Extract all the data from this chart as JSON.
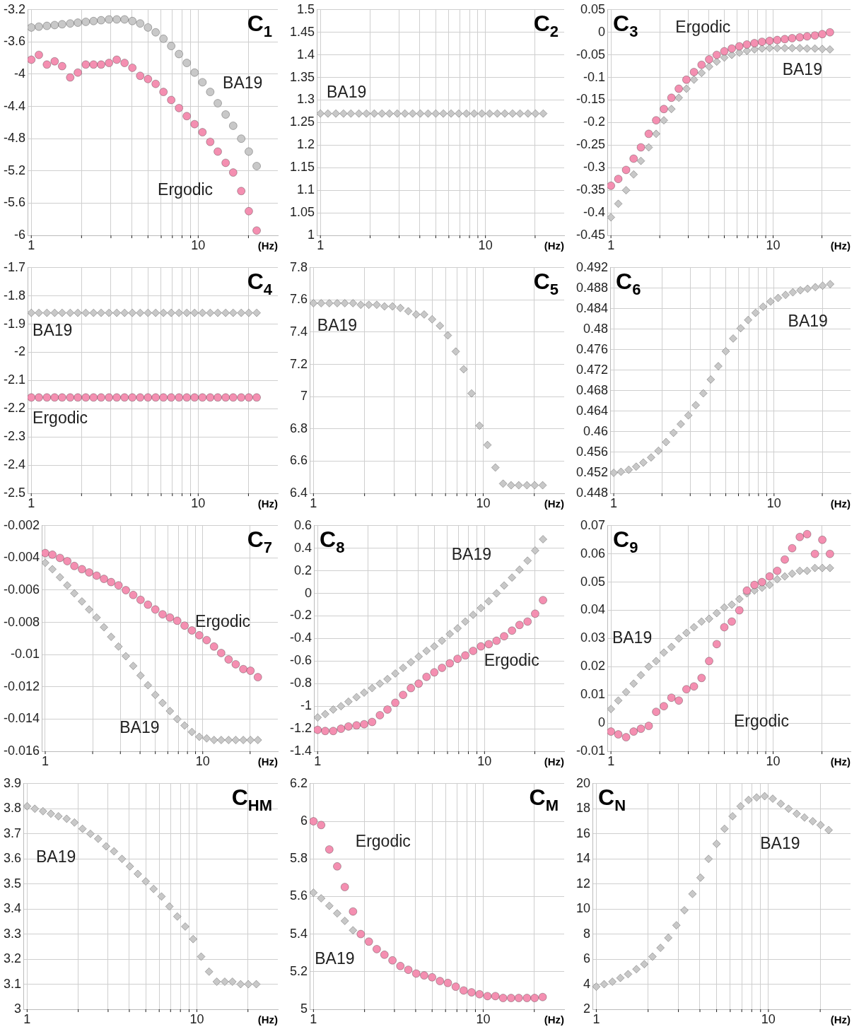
{
  "chart_data": [
    {
      "type": "scatter",
      "title": "C$_{1}$",
      "xlabel": "(Hz)",
      "log": "x",
      "grid": true,
      "xlim": [
        0.95,
        30
      ],
      "xticks": [
        {
          "value": 1,
          "label": "1"
        },
        {
          "value": 2,
          "label": null
        },
        {
          "value": 3,
          "label": null
        },
        {
          "value": 4,
          "label": null
        },
        {
          "value": 5,
          "label": null
        },
        {
          "value": 6,
          "label": null
        },
        {
          "value": 7,
          "label": null
        },
        {
          "value": 8,
          "label": null
        },
        {
          "value": 9,
          "label": null
        },
        {
          "value": 10,
          "label": "10"
        },
        {
          "value": 20,
          "label": null
        }
      ],
      "ylim": [
        -6,
        -3.2
      ],
      "yticks": [
        -6,
        -5.6,
        -5.2,
        -4.8,
        -4.4,
        -4,
        -3.6,
        -3.2
      ],
      "x": [
        1,
        1.11,
        1.24,
        1.38,
        1.53,
        1.71,
        1.9,
        2.12,
        2.36,
        2.62,
        2.92,
        3.25,
        3.62,
        4.03,
        4.49,
        5,
        5.56,
        6.19,
        6.89,
        7.67,
        8.54,
        9.51,
        10.6,
        11.8,
        13.1,
        14.6,
        16.2,
        18.1,
        20.1,
        22.4
      ],
      "series": [
        {
          "name": "BA19",
          "color": "#c8c8c8",
          "marker": "circle",
          "values": [
            -3.42,
            -3.41,
            -3.4,
            -3.39,
            -3.38,
            -3.37,
            -3.36,
            -3.35,
            -3.34,
            -3.33,
            -3.32,
            -3.32,
            -3.32,
            -3.34,
            -3.37,
            -3.42,
            -3.48,
            -3.56,
            -3.65,
            -3.75,
            -3.86,
            -3.98,
            -4.1,
            -4.22,
            -4.36,
            -4.5,
            -4.64,
            -4.8,
            -4.96,
            -5.14
          ]
        },
        {
          "name": "Ergodic",
          "color": "#f48fb1",
          "marker": "circle",
          "values": [
            -3.82,
            -3.76,
            -3.88,
            -3.84,
            -3.9,
            -4.04,
            -3.98,
            -3.88,
            -3.88,
            -3.88,
            -3.86,
            -3.82,
            -3.86,
            -3.92,
            -4.02,
            -4.06,
            -4.12,
            -4.22,
            -4.32,
            -4.42,
            -4.52,
            -4.62,
            -4.72,
            -4.84,
            -4.96,
            -5.1,
            -5.22,
            -5.45,
            -5.7,
            -5.94
          ]
        }
      ]
    },
    {
      "type": "scatter",
      "title": "C$_{2}$",
      "xlabel": "(Hz)",
      "log": "x",
      "grid": true,
      "xlim": [
        0.95,
        30
      ],
      "xticks": [
        {
          "value": 1,
          "label": "1"
        },
        {
          "value": 2,
          "label": null
        },
        {
          "value": 3,
          "label": null
        },
        {
          "value": 4,
          "label": null
        },
        {
          "value": 5,
          "label": null
        },
        {
          "value": 6,
          "label": null
        },
        {
          "value": 7,
          "label": null
        },
        {
          "value": 8,
          "label": null
        },
        {
          "value": 9,
          "label": null
        },
        {
          "value": 10,
          "label": "10"
        },
        {
          "value": 20,
          "label": null
        }
      ],
      "ylim": [
        1,
        1.5
      ],
      "yticks": [
        1,
        1.05,
        1.1,
        1.15,
        1.2,
        1.25,
        1.3,
        1.35,
        1.4,
        1.45,
        1.5
      ],
      "x": [
        1,
        1.11,
        1.24,
        1.38,
        1.53,
        1.71,
        1.9,
        2.12,
        2.36,
        2.62,
        2.92,
        3.25,
        3.62,
        4.03,
        4.49,
        5,
        5.56,
        6.19,
        6.89,
        7.67,
        8.54,
        9.51,
        10.6,
        11.8,
        13.1,
        14.6,
        16.2,
        18.1,
        20.1,
        22.4
      ],
      "series": [
        {
          "name": "BA19",
          "color": "#c8c8c8",
          "marker": "diamond",
          "values": [
            1.27,
            1.27,
            1.27,
            1.27,
            1.27,
            1.27,
            1.27,
            1.27,
            1.27,
            1.27,
            1.27,
            1.27,
            1.27,
            1.27,
            1.27,
            1.27,
            1.27,
            1.27,
            1.27,
            1.27,
            1.27,
            1.27,
            1.27,
            1.27,
            1.27,
            1.27,
            1.27,
            1.27,
            1.27,
            1.27
          ]
        }
      ]
    },
    {
      "type": "scatter",
      "title": "C$_{3}$",
      "xlabel": "(Hz)",
      "log": "x",
      "grid": true,
      "xlim": [
        0.95,
        30
      ],
      "xticks": [
        {
          "value": 1,
          "label": "1"
        },
        {
          "value": 2,
          "label": null
        },
        {
          "value": 3,
          "label": null
        },
        {
          "value": 4,
          "label": null
        },
        {
          "value": 5,
          "label": null
        },
        {
          "value": 6,
          "label": null
        },
        {
          "value": 7,
          "label": null
        },
        {
          "value": 8,
          "label": null
        },
        {
          "value": 9,
          "label": null
        },
        {
          "value": 10,
          "label": "10"
        },
        {
          "value": 20,
          "label": null
        }
      ],
      "ylim": [
        -0.45,
        0.05
      ],
      "yticks": [
        -0.45,
        -0.4,
        -0.35,
        -0.3,
        -0.25,
        -0.2,
        -0.15,
        -0.1,
        -0.05,
        0,
        0.05
      ],
      "x": [
        1,
        1.11,
        1.24,
        1.38,
        1.53,
        1.71,
        1.9,
        2.12,
        2.36,
        2.62,
        2.92,
        3.25,
        3.62,
        4.03,
        4.49,
        5,
        5.56,
        6.19,
        6.89,
        7.67,
        8.54,
        9.51,
        10.6,
        11.8,
        13.1,
        14.6,
        16.2,
        18.1,
        20.1,
        22.4
      ],
      "series": [
        {
          "name": "BA19",
          "color": "#c8c8c8",
          "marker": "diamond",
          "values": [
            -0.41,
            -0.38,
            -0.35,
            -0.315,
            -0.285,
            -0.255,
            -0.225,
            -0.195,
            -0.17,
            -0.145,
            -0.125,
            -0.105,
            -0.09,
            -0.076,
            -0.065,
            -0.056,
            -0.05,
            -0.045,
            -0.041,
            -0.038,
            -0.036,
            -0.035,
            -0.035,
            -0.035,
            -0.035,
            -0.035,
            -0.036,
            -0.036,
            -0.037,
            -0.038
          ]
        },
        {
          "name": "Ergodic",
          "color": "#f48fb1",
          "marker": "circle",
          "values": [
            -0.34,
            -0.325,
            -0.305,
            -0.28,
            -0.255,
            -0.225,
            -0.195,
            -0.17,
            -0.145,
            -0.125,
            -0.105,
            -0.088,
            -0.072,
            -0.06,
            -0.05,
            -0.042,
            -0.036,
            -0.031,
            -0.027,
            -0.024,
            -0.021,
            -0.019,
            -0.017,
            -0.015,
            -0.013,
            -0.011,
            -0.009,
            -0.007,
            -0.004,
            0
          ]
        }
      ]
    },
    {
      "type": "scatter",
      "title": "C$_{4}$",
      "xlabel": "(Hz)",
      "log": "x",
      "grid": true,
      "xlim": [
        0.95,
        30
      ],
      "xticks": [
        {
          "value": 1,
          "label": "1"
        },
        {
          "value": 2,
          "label": null
        },
        {
          "value": 3,
          "label": null
        },
        {
          "value": 4,
          "label": null
        },
        {
          "value": 5,
          "label": null
        },
        {
          "value": 6,
          "label": null
        },
        {
          "value": 7,
          "label": null
        },
        {
          "value": 8,
          "label": null
        },
        {
          "value": 9,
          "label": null
        },
        {
          "value": 10,
          "label": "10"
        },
        {
          "value": 20,
          "label": null
        }
      ],
      "ylim": [
        -2.5,
        -1.7
      ],
      "yticks": [
        -2.5,
        -2.4,
        -2.3,
        -2.2,
        -2.1,
        -2,
        -1.9,
        -1.8,
        -1.7
      ],
      "x": [
        1,
        1.11,
        1.24,
        1.38,
        1.53,
        1.71,
        1.9,
        2.12,
        2.36,
        2.62,
        2.92,
        3.25,
        3.62,
        4.03,
        4.49,
        5,
        5.56,
        6.19,
        6.89,
        7.67,
        8.54,
        9.51,
        10.6,
        11.8,
        13.1,
        14.6,
        16.2,
        18.1,
        20.1,
        22.4
      ],
      "series": [
        {
          "name": "BA19",
          "color": "#c8c8c8",
          "marker": "diamond",
          "values": [
            -1.86,
            -1.86,
            -1.86,
            -1.86,
            -1.86,
            -1.86,
            -1.86,
            -1.86,
            -1.86,
            -1.86,
            -1.86,
            -1.86,
            -1.86,
            -1.86,
            -1.86,
            -1.86,
            -1.86,
            -1.86,
            -1.86,
            -1.86,
            -1.86,
            -1.86,
            -1.86,
            -1.86,
            -1.86,
            -1.86,
            -1.86,
            -1.86,
            -1.86,
            -1.86
          ]
        },
        {
          "name": "Ergodic",
          "color": "#f48fb1",
          "marker": "circle",
          "values": [
            -2.16,
            -2.16,
            -2.16,
            -2.16,
            -2.16,
            -2.16,
            -2.16,
            -2.16,
            -2.16,
            -2.16,
            -2.16,
            -2.16,
            -2.16,
            -2.16,
            -2.16,
            -2.16,
            -2.16,
            -2.16,
            -2.16,
            -2.16,
            -2.16,
            -2.16,
            -2.16,
            -2.16,
            -2.16,
            -2.16,
            -2.16,
            -2.16,
            -2.16,
            -2.16
          ]
        }
      ]
    },
    {
      "type": "scatter",
      "title": "C$_{5}$",
      "xlabel": "(Hz)",
      "log": "x",
      "grid": true,
      "xlim": [
        0.95,
        30
      ],
      "xticks": [
        {
          "value": 1,
          "label": "1"
        },
        {
          "value": 2,
          "label": null
        },
        {
          "value": 3,
          "label": null
        },
        {
          "value": 4,
          "label": null
        },
        {
          "value": 5,
          "label": null
        },
        {
          "value": 6,
          "label": null
        },
        {
          "value": 7,
          "label": null
        },
        {
          "value": 8,
          "label": null
        },
        {
          "value": 9,
          "label": null
        },
        {
          "value": 10,
          "label": "10"
        },
        {
          "value": 20,
          "label": null
        }
      ],
      "ylim": [
        6.4,
        7.8
      ],
      "yticks": [
        6.4,
        6.6,
        6.8,
        7,
        7.2,
        7.4,
        7.6,
        7.8
      ],
      "x": [
        1,
        1.11,
        1.24,
        1.38,
        1.53,
        1.71,
        1.9,
        2.12,
        2.36,
        2.62,
        2.92,
        3.25,
        3.62,
        4.03,
        4.49,
        5,
        5.56,
        6.19,
        6.89,
        7.67,
        8.54,
        9.51,
        10.6,
        11.8,
        13.1,
        14.6,
        16.2,
        18.1,
        20.1,
        22.4
      ],
      "series": [
        {
          "name": "BA19",
          "color": "#c8c8c8",
          "marker": "diamond",
          "values": [
            7.58,
            7.58,
            7.58,
            7.58,
            7.58,
            7.58,
            7.57,
            7.57,
            7.57,
            7.56,
            7.56,
            7.55,
            7.53,
            7.51,
            7.51,
            7.48,
            7.44,
            7.38,
            7.28,
            7.17,
            7.02,
            6.82,
            6.7,
            6.56,
            6.46,
            6.45,
            6.45,
            6.45,
            6.45,
            6.45
          ]
        }
      ]
    },
    {
      "type": "scatter",
      "title": "C$_{6}$",
      "xlabel": "(Hz)",
      "log": "x",
      "grid": true,
      "xlim": [
        0.95,
        30
      ],
      "xticks": [
        {
          "value": 1,
          "label": "1"
        },
        {
          "value": 2,
          "label": null
        },
        {
          "value": 3,
          "label": null
        },
        {
          "value": 4,
          "label": null
        },
        {
          "value": 5,
          "label": null
        },
        {
          "value": 6,
          "label": null
        },
        {
          "value": 7,
          "label": null
        },
        {
          "value": 8,
          "label": null
        },
        {
          "value": 9,
          "label": null
        },
        {
          "value": 10,
          "label": "10"
        },
        {
          "value": 20,
          "label": null
        }
      ],
      "ylim": [
        0.448,
        0.492
      ],
      "yticks": [
        0.448,
        0.452,
        0.456,
        0.46,
        0.464,
        0.468,
        0.472,
        0.476,
        0.48,
        0.484,
        0.488,
        0.492
      ],
      "x": [
        1,
        1.11,
        1.24,
        1.38,
        1.53,
        1.71,
        1.9,
        2.12,
        2.36,
        2.62,
        2.92,
        3.25,
        3.62,
        4.03,
        4.49,
        5,
        5.56,
        6.19,
        6.89,
        7.67,
        8.54,
        9.51,
        10.6,
        11.8,
        13.1,
        14.6,
        16.2,
        18.1,
        20.1,
        22.4
      ],
      "series": [
        {
          "name": "BA19",
          "color": "#c8c8c8",
          "marker": "diamond",
          "values": [
            0.452,
            0.4522,
            0.4526,
            0.4532,
            0.454,
            0.455,
            0.4563,
            0.458,
            0.4598,
            0.4615,
            0.4632,
            0.4652,
            0.4675,
            0.4702,
            0.4728,
            0.4757,
            0.4782,
            0.4802,
            0.4818,
            0.4832,
            0.4844,
            0.4854,
            0.4861,
            0.4867,
            0.4872,
            0.4876,
            0.4879,
            0.4882,
            0.4885,
            0.4888
          ]
        }
      ]
    },
    {
      "type": "scatter",
      "title": "C$_{7}$",
      "xlabel": "(Hz)",
      "log": "x",
      "grid": true,
      "xlim": [
        0.95,
        30
      ],
      "xticks": [
        {
          "value": 1,
          "label": "1"
        },
        {
          "value": 2,
          "label": null
        },
        {
          "value": 3,
          "label": null
        },
        {
          "value": 4,
          "label": null
        },
        {
          "value": 5,
          "label": null
        },
        {
          "value": 6,
          "label": null
        },
        {
          "value": 7,
          "label": null
        },
        {
          "value": 8,
          "label": null
        },
        {
          "value": 9,
          "label": null
        },
        {
          "value": 10,
          "label": "10"
        },
        {
          "value": 20,
          "label": null
        }
      ],
      "ylim": [
        -0.016,
        -0.002
      ],
      "yticks": [
        -0.016,
        -0.014,
        -0.012,
        -0.01,
        -0.008,
        -0.006,
        -0.004,
        -0.002
      ],
      "x": [
        1,
        1.11,
        1.24,
        1.38,
        1.53,
        1.71,
        1.9,
        2.12,
        2.36,
        2.62,
        2.92,
        3.25,
        3.62,
        4.03,
        4.49,
        5,
        5.56,
        6.19,
        6.89,
        7.67,
        8.54,
        9.51,
        10.6,
        11.8,
        13.1,
        14.6,
        16.2,
        18.1,
        20.1,
        22.4
      ],
      "series": [
        {
          "name": "BA19",
          "color": "#c8c8c8",
          "marker": "diamond",
          "values": [
            -0.0043,
            -0.0047,
            -0.0052,
            -0.0057,
            -0.0062,
            -0.0067,
            -0.0072,
            -0.0077,
            -0.0083,
            -0.0089,
            -0.0095,
            -0.0101,
            -0.0107,
            -0.0113,
            -0.0119,
            -0.0125,
            -0.013,
            -0.0135,
            -0.014,
            -0.0144,
            -0.0148,
            -0.0151,
            -0.0152,
            -0.0153,
            -0.0153,
            -0.0153,
            -0.0153,
            -0.0153,
            -0.0153,
            -0.0153
          ]
        },
        {
          "name": "Ergodic",
          "color": "#f48fb1",
          "marker": "circle",
          "values": [
            -0.0037,
            -0.0038,
            -0.004,
            -0.0042,
            -0.0045,
            -0.0047,
            -0.0049,
            -0.0051,
            -0.0053,
            -0.0055,
            -0.0057,
            -0.006,
            -0.0063,
            -0.0066,
            -0.0069,
            -0.0072,
            -0.0075,
            -0.0077,
            -0.0079,
            -0.0082,
            -0.0085,
            -0.0088,
            -0.0091,
            -0.0095,
            -0.0099,
            -0.0103,
            -0.0106,
            -0.0109,
            -0.011,
            -0.0114
          ]
        }
      ]
    },
    {
      "type": "scatter",
      "title": "C$_{8}$",
      "xlabel": "(Hz)",
      "log": "x",
      "grid": true,
      "xlim": [
        0.95,
        30
      ],
      "xticks": [
        {
          "value": 1,
          "label": "1"
        },
        {
          "value": 2,
          "label": null
        },
        {
          "value": 3,
          "label": null
        },
        {
          "value": 4,
          "label": null
        },
        {
          "value": 5,
          "label": null
        },
        {
          "value": 6,
          "label": null
        },
        {
          "value": 7,
          "label": null
        },
        {
          "value": 8,
          "label": null
        },
        {
          "value": 9,
          "label": null
        },
        {
          "value": 10,
          "label": "10"
        },
        {
          "value": 20,
          "label": null
        }
      ],
      "ylim": [
        -1.4,
        0.6
      ],
      "yticks": [
        -1.4,
        -1.2,
        -1,
        -0.8,
        -0.6,
        -0.4,
        -0.2,
        0,
        0.2,
        0.4,
        0.6
      ],
      "x": [
        1,
        1.11,
        1.24,
        1.38,
        1.53,
        1.71,
        1.9,
        2.12,
        2.36,
        2.62,
        2.92,
        3.25,
        3.62,
        4.03,
        4.49,
        5,
        5.56,
        6.19,
        6.89,
        7.67,
        8.54,
        9.51,
        10.6,
        11.8,
        13.1,
        14.6,
        16.2,
        18.1,
        20.1,
        22.4
      ],
      "series": [
        {
          "name": "BA19",
          "color": "#c8c8c8",
          "marker": "diamond",
          "values": [
            -1.1,
            -1.07,
            -1.03,
            -1,
            -0.96,
            -0.92,
            -0.88,
            -0.84,
            -0.8,
            -0.76,
            -0.71,
            -0.66,
            -0.61,
            -0.56,
            -0.51,
            -0.47,
            -0.42,
            -0.36,
            -0.31,
            -0.25,
            -0.19,
            -0.13,
            -0.07,
            0,
            0.07,
            0.14,
            0.21,
            0.29,
            0.38,
            0.48
          ]
        },
        {
          "name": "Ergodic",
          "color": "#f48fb1",
          "marker": "circle",
          "values": [
            -1.21,
            -1.22,
            -1.22,
            -1.2,
            -1.18,
            -1.17,
            -1.16,
            -1.14,
            -1.08,
            -1.03,
            -0.97,
            -0.9,
            -0.84,
            -0.8,
            -0.74,
            -0.7,
            -0.66,
            -0.62,
            -0.58,
            -0.55,
            -0.51,
            -0.47,
            -0.45,
            -0.42,
            -0.38,
            -0.33,
            -0.28,
            -0.25,
            -0.18,
            -0.06
          ]
        }
      ]
    },
    {
      "type": "scatter",
      "title": "C$_{9}$",
      "xlabel": "(Hz)",
      "log": "x",
      "grid": true,
      "xlim": [
        0.95,
        30
      ],
      "xticks": [
        {
          "value": 1,
          "label": "1"
        },
        {
          "value": 2,
          "label": null
        },
        {
          "value": 3,
          "label": null
        },
        {
          "value": 4,
          "label": null
        },
        {
          "value": 5,
          "label": null
        },
        {
          "value": 6,
          "label": null
        },
        {
          "value": 7,
          "label": null
        },
        {
          "value": 8,
          "label": null
        },
        {
          "value": 9,
          "label": null
        },
        {
          "value": 10,
          "label": "10"
        },
        {
          "value": 20,
          "label": null
        }
      ],
      "ylim": [
        -0.01,
        0.07
      ],
      "yticks": [
        -0.01,
        0,
        0.01,
        0.02,
        0.03,
        0.04,
        0.05,
        0.06,
        0.07
      ],
      "x": [
        1,
        1.11,
        1.24,
        1.38,
        1.53,
        1.71,
        1.9,
        2.12,
        2.36,
        2.62,
        2.92,
        3.25,
        3.62,
        4.03,
        4.49,
        5,
        5.56,
        6.19,
        6.89,
        7.67,
        8.54,
        9.51,
        10.6,
        11.8,
        13.1,
        14.6,
        16.2,
        18.1,
        20.1,
        22.4
      ],
      "series": [
        {
          "name": "BA19",
          "color": "#c8c8c8",
          "marker": "diamond",
          "values": [
            0.005,
            0.008,
            0.011,
            0.014,
            0.017,
            0.02,
            0.022,
            0.025,
            0.027,
            0.03,
            0.032,
            0.034,
            0.036,
            0.037,
            0.039,
            0.041,
            0.042,
            0.044,
            0.046,
            0.047,
            0.048,
            0.049,
            0.051,
            0.052,
            0.053,
            0.054,
            0.054,
            0.055,
            0.055,
            0.055
          ]
        },
        {
          "name": "Ergodic",
          "color": "#f48fb1",
          "marker": "circle",
          "values": [
            -0.003,
            -0.004,
            -0.005,
            -0.003,
            -0.002,
            -0.001,
            0.004,
            0.006,
            0.009,
            0.008,
            0.012,
            0.013,
            0.016,
            0.022,
            0.028,
            0.034,
            0.036,
            0.04,
            0.047,
            0.049,
            0.05,
            0.052,
            0.054,
            0.058,
            0.062,
            0.066,
            0.067,
            0.06,
            0.065,
            0.06
          ]
        }
      ]
    },
    {
      "type": "scatter",
      "title": "C$_{HM}$",
      "xlabel": "(Hz)",
      "log": "x",
      "grid": true,
      "xlim": [
        0.95,
        30
      ],
      "xticks": [
        {
          "value": 1,
          "label": "1"
        },
        {
          "value": 2,
          "label": null
        },
        {
          "value": 3,
          "label": null
        },
        {
          "value": 4,
          "label": null
        },
        {
          "value": 5,
          "label": null
        },
        {
          "value": 6,
          "label": null
        },
        {
          "value": 7,
          "label": null
        },
        {
          "value": 8,
          "label": null
        },
        {
          "value": 9,
          "label": null
        },
        {
          "value": 10,
          "label": "10"
        },
        {
          "value": 20,
          "label": null
        }
      ],
      "ylim": [
        3,
        3.9
      ],
      "yticks": [
        3,
        3.1,
        3.2,
        3.3,
        3.4,
        3.5,
        3.6,
        3.7,
        3.8,
        3.9
      ],
      "x": [
        1,
        1.11,
        1.24,
        1.38,
        1.53,
        1.71,
        1.9,
        2.12,
        2.36,
        2.62,
        2.92,
        3.25,
        3.62,
        4.03,
        4.49,
        5,
        5.56,
        6.19,
        6.89,
        7.67,
        8.54,
        9.51,
        10.6,
        11.8,
        13.1,
        14.6,
        16.2,
        18.1,
        20.1,
        22.4
      ],
      "series": [
        {
          "name": "BA19",
          "color": "#c8c8c8",
          "marker": "diamond",
          "values": [
            3.81,
            3.8,
            3.79,
            3.78,
            3.77,
            3.76,
            3.745,
            3.72,
            3.7,
            3.68,
            3.65,
            3.63,
            3.6,
            3.57,
            3.54,
            3.51,
            3.48,
            3.45,
            3.41,
            3.37,
            3.33,
            3.28,
            3.21,
            3.15,
            3.11,
            3.11,
            3.11,
            3.1,
            3.1,
            3.1
          ]
        }
      ]
    },
    {
      "type": "scatter",
      "title": "C$_{M}$",
      "xlabel": "(Hz)",
      "log": "x",
      "grid": true,
      "xlim": [
        0.95,
        30
      ],
      "xticks": [
        {
          "value": 1,
          "label": "1"
        },
        {
          "value": 2,
          "label": null
        },
        {
          "value": 3,
          "label": null
        },
        {
          "value": 4,
          "label": null
        },
        {
          "value": 5,
          "label": null
        },
        {
          "value": 6,
          "label": null
        },
        {
          "value": 7,
          "label": null
        },
        {
          "value": 8,
          "label": null
        },
        {
          "value": 9,
          "label": null
        },
        {
          "value": 10,
          "label": "10"
        },
        {
          "value": 20,
          "label": null
        }
      ],
      "ylim": [
        5,
        6.2
      ],
      "yticks": [
        5,
        5.2,
        5.4,
        5.6,
        5.8,
        6,
        6.2
      ],
      "x": [
        1,
        1.11,
        1.24,
        1.38,
        1.53,
        1.71,
        1.9,
        2.12,
        2.36,
        2.62,
        2.92,
        3.25,
        3.62,
        4.03,
        4.49,
        5,
        5.56,
        6.19,
        6.89,
        7.67,
        8.54,
        9.51,
        10.6,
        11.8,
        13.1,
        14.6,
        16.2,
        18.1,
        20.1,
        22.4
      ],
      "series": [
        {
          "name": "BA19",
          "color": "#c8c8c8",
          "marker": "diamond",
          "values": [
            5.62,
            5.59,
            5.55,
            5.51,
            5.47,
            5.42,
            null,
            null,
            null,
            null,
            null,
            null,
            null,
            null,
            null,
            null,
            null,
            null,
            null,
            null,
            null,
            null,
            null,
            null,
            null,
            null,
            null,
            null,
            null,
            null
          ]
        },
        {
          "name": "Ergodic",
          "color": "#f48fb1",
          "marker": "circle",
          "values": [
            6,
            5.98,
            5.85,
            5.76,
            5.65,
            5.52,
            5.4,
            5.36,
            5.32,
            5.29,
            5.26,
            5.23,
            5.21,
            5.19,
            5.18,
            5.17,
            5.15,
            5.14,
            5.12,
            5.1,
            5.09,
            5.08,
            5.07,
            5.07,
            5.06,
            5.06,
            5.06,
            5.06,
            5.06,
            5.065
          ]
        }
      ]
    },
    {
      "type": "scatter",
      "title": "C$_{N}$",
      "xlabel": "(Hz)",
      "log": "x",
      "grid": true,
      "xlim": [
        0.95,
        30
      ],
      "xticks": [
        {
          "value": 1,
          "label": "1"
        },
        {
          "value": 2,
          "label": null
        },
        {
          "value": 3,
          "label": null
        },
        {
          "value": 4,
          "label": null
        },
        {
          "value": 5,
          "label": null
        },
        {
          "value": 6,
          "label": null
        },
        {
          "value": 7,
          "label": null
        },
        {
          "value": 8,
          "label": null
        },
        {
          "value": 9,
          "label": null
        },
        {
          "value": 10,
          "label": "10"
        },
        {
          "value": 20,
          "label": null
        }
      ],
      "ylim": [
        2,
        20
      ],
      "yticks": [
        2,
        4,
        6,
        8,
        10,
        12,
        14,
        16,
        18,
        20
      ],
      "x": [
        1,
        1.11,
        1.24,
        1.38,
        1.53,
        1.71,
        1.9,
        2.12,
        2.36,
        2.62,
        2.92,
        3.25,
        3.62,
        4.03,
        4.49,
        5,
        5.56,
        6.19,
        6.89,
        7.67,
        8.54,
        9.51,
        10.6,
        11.8,
        13.1,
        14.6,
        16.2,
        18.1,
        20.1,
        22.4
      ],
      "series": [
        {
          "name": "BA19",
          "color": "#c8c8c8",
          "marker": "diamond",
          "values": [
            3.8,
            4,
            4.2,
            4.5,
            4.8,
            5.2,
            5.6,
            6.2,
            6.9,
            7.7,
            8.7,
            9.9,
            11.2,
            12.5,
            14,
            15.2,
            16.4,
            17.4,
            18.2,
            18.7,
            18.9,
            19,
            18.8,
            18.4,
            18,
            17.6,
            17.3,
            17,
            16.7,
            16.3
          ]
        }
      ]
    }
  ]
}
